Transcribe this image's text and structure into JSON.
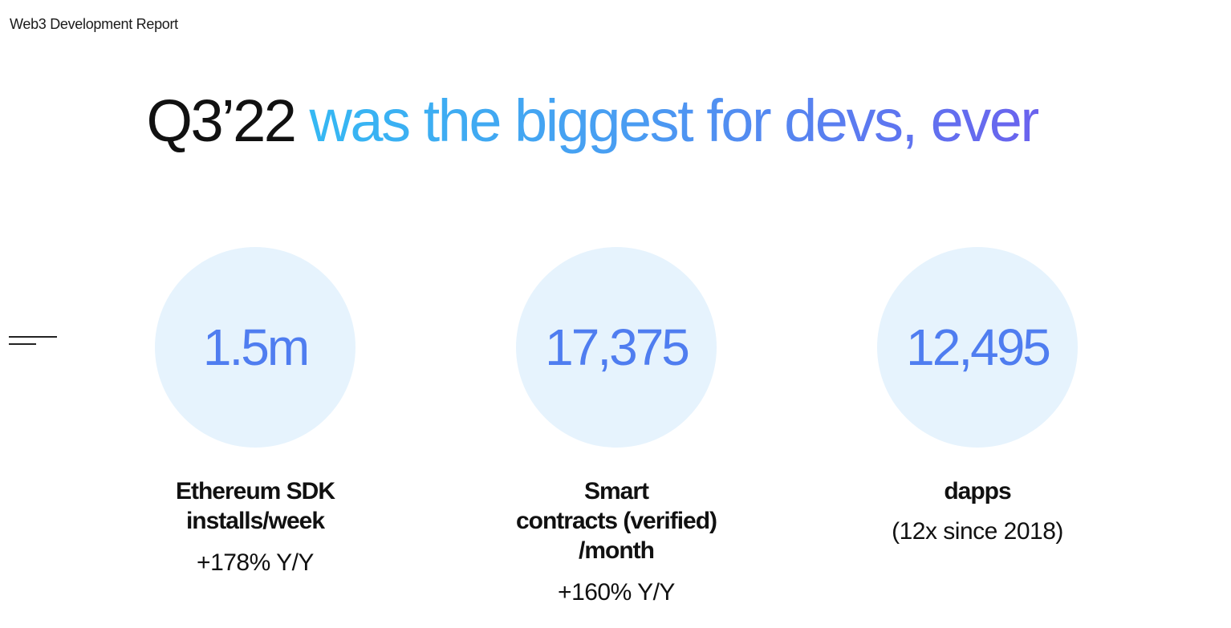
{
  "header": {
    "report_label": "Web3 Development Report"
  },
  "headline": {
    "lead": "Q3’22",
    "rest": "was the biggest for devs, ever"
  },
  "stats": [
    {
      "value": "1.5m",
      "label_lines": [
        "Ethereum SDK",
        "installs/week"
      ],
      "sub": "+178% Y/Y"
    },
    {
      "value": "17,375",
      "label_lines": [
        "Smart",
        "contracts (verified)",
        "/month"
      ],
      "sub": "+160% Y/Y"
    },
    {
      "value": "12,495",
      "label_lines": [
        "dapps"
      ],
      "sub": "(12x since 2018)"
    }
  ],
  "icons": {
    "menu": "menu-lines-icon"
  },
  "colors": {
    "stat_value": "#4f7df0",
    "circle_fill": "#e6f3fd",
    "headline_gradient_start": "#35b8f3",
    "headline_gradient_end": "#6a62ee"
  }
}
